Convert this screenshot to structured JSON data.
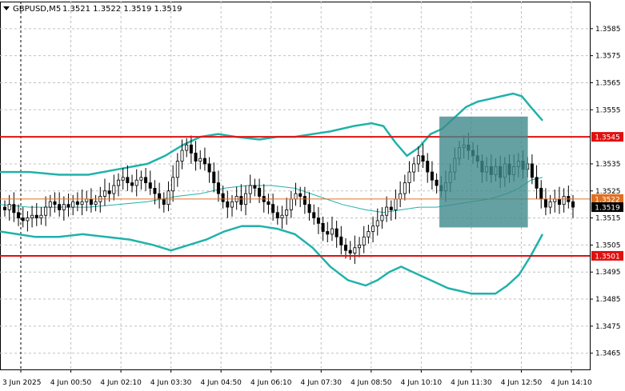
{
  "header": {
    "symbol": "GBPUSD,M5",
    "ohlc": "1.3521 1.3522 1.3519 1.3519"
  },
  "colors": {
    "band": "#20b2aa",
    "level_line": "#e01010",
    "bid_line": "#e07020",
    "highlight_box": "#3f8a8c",
    "candle": "#000000",
    "grid": "#c0c0c0"
  },
  "chart_data": {
    "type": "candlestick",
    "ylim": [
      1.3459,
      1.3595
    ],
    "y_ticks": [
      "1.3585",
      "1.3575",
      "1.3565",
      "1.3555",
      "1.3535",
      "1.3525",
      "1.3515",
      "1.3505",
      "1.3495",
      "1.3485",
      "1.3475",
      "1.3465"
    ],
    "x_ticks": [
      "3 Jun 2025",
      "4 Jun 00:50",
      "4 Jun 02:10",
      "4 Jun 03:30",
      "4 Jun 04:50",
      "4 Jun 06:10",
      "4 Jun 07:30",
      "4 Jun 08:50",
      "4 Jun 10:10",
      "4 Jun 11:30",
      "4 Jun 12:50",
      "4 Jun 14:10"
    ],
    "levels": [
      {
        "label": "1.3545",
        "value": 1.3545
      },
      {
        "label": "1.3501",
        "value": 1.3501
      }
    ],
    "price_tags": [
      {
        "label": "1.3522",
        "value": 1.3522
      },
      {
        "label": "1.3519",
        "value": 1.3519
      }
    ],
    "highlight": {
      "x_from": 0.745,
      "x_to": 0.895,
      "y_from": 1.35525,
      "y_to": 1.35115
    },
    "closes": [
      1.3518,
      1.352,
      1.3517,
      1.3515,
      1.3514,
      1.3515,
      1.3516,
      1.3515,
      1.3516,
      1.3519,
      1.3521,
      1.352,
      1.3518,
      1.352,
      1.3519,
      1.3521,
      1.352,
      1.3521,
      1.3522,
      1.352,
      1.3521,
      1.3523,
      1.3525,
      1.3524,
      1.3527,
      1.3529,
      1.353,
      1.3528,
      1.3527,
      1.3529,
      1.353,
      1.3528,
      1.3526,
      1.3524,
      1.3522,
      1.352,
      1.3525,
      1.353,
      1.3536,
      1.354,
      1.3542,
      1.3539,
      1.3536,
      1.3537,
      1.3535,
      1.3532,
      1.3528,
      1.3524,
      1.3521,
      1.3519,
      1.3521,
      1.3523,
      1.352,
      1.3524,
      1.3527,
      1.3526,
      1.3523,
      1.3521,
      1.352,
      1.3517,
      1.3515,
      1.3516,
      1.3518,
      1.3522,
      1.3524,
      1.3523,
      1.352,
      1.3517,
      1.3515,
      1.3513,
      1.351,
      1.3509,
      1.3511,
      1.3508,
      1.3505,
      1.3503,
      1.3502,
      1.3504,
      1.3505,
      1.3508,
      1.351,
      1.3512,
      1.3514,
      1.3516,
      1.3519,
      1.3518,
      1.3522,
      1.3524,
      1.3528,
      1.3532,
      1.3535,
      1.3538,
      1.3536,
      1.3532,
      1.3529,
      1.3527,
      1.3525,
      1.3528,
      1.3532,
      1.3537,
      1.3541,
      1.3542,
      1.354,
      1.3538,
      1.3536,
      1.3532,
      1.3534,
      1.3531,
      1.3534,
      1.353,
      1.3535,
      1.3531,
      1.3534,
      1.3536,
      1.3533,
      1.3535,
      1.353,
      1.3526,
      1.3522,
      1.3519,
      1.3521,
      1.3522,
      1.352,
      1.3523,
      1.3521,
      1.3519
    ],
    "upper_band": [
      [
        0.0,
        1.3532
      ],
      [
        0.05,
        1.3532
      ],
      [
        0.1,
        1.3531
      ],
      [
        0.15,
        1.3531
      ],
      [
        0.2,
        1.3533
      ],
      [
        0.25,
        1.3535
      ],
      [
        0.28,
        1.3538
      ],
      [
        0.31,
        1.3542
      ],
      [
        0.34,
        1.3545
      ],
      [
        0.37,
        1.3546
      ],
      [
        0.4,
        1.3545
      ],
      [
        0.44,
        1.3544
      ],
      [
        0.47,
        1.3545
      ],
      [
        0.5,
        1.3545
      ],
      [
        0.53,
        1.3546
      ],
      [
        0.56,
        1.3547
      ],
      [
        0.6,
        1.3549
      ],
      [
        0.63,
        1.355
      ],
      [
        0.65,
        1.3549
      ],
      [
        0.67,
        1.3543
      ],
      [
        0.69,
        1.3538
      ],
      [
        0.71,
        1.3541
      ],
      [
        0.73,
        1.3546
      ],
      [
        0.75,
        1.3548
      ],
      [
        0.77,
        1.3552
      ],
      [
        0.79,
        1.3556
      ],
      [
        0.81,
        1.3558
      ],
      [
        0.83,
        1.3559
      ],
      [
        0.85,
        1.356
      ],
      [
        0.87,
        1.3561
      ],
      [
        0.885,
        1.356
      ],
      [
        0.9,
        1.3556
      ],
      [
        0.92,
        1.3551
      ]
    ],
    "middle_band": [
      [
        0.0,
        1.352
      ],
      [
        0.05,
        1.3519
      ],
      [
        0.1,
        1.3519
      ],
      [
        0.15,
        1.3519
      ],
      [
        0.2,
        1.352
      ],
      [
        0.25,
        1.3521
      ],
      [
        0.3,
        1.3523
      ],
      [
        0.34,
        1.3524
      ],
      [
        0.38,
        1.3526
      ],
      [
        0.42,
        1.3527
      ],
      [
        0.46,
        1.3527
      ],
      [
        0.5,
        1.3526
      ],
      [
        0.54,
        1.3523
      ],
      [
        0.58,
        1.352
      ],
      [
        0.62,
        1.3518
      ],
      [
        0.65,
        1.3517
      ],
      [
        0.68,
        1.3518
      ],
      [
        0.71,
        1.3519
      ],
      [
        0.74,
        1.3519
      ],
      [
        0.77,
        1.352
      ],
      [
        0.8,
        1.3521
      ],
      [
        0.83,
        1.3522
      ],
      [
        0.86,
        1.3524
      ],
      [
        0.88,
        1.3526
      ],
      [
        0.9,
        1.3529
      ],
      [
        0.92,
        1.353
      ]
    ],
    "lower_band": [
      [
        0.0,
        1.351
      ],
      [
        0.03,
        1.3509
      ],
      [
        0.06,
        1.3508
      ],
      [
        0.1,
        1.3508
      ],
      [
        0.14,
        1.3509
      ],
      [
        0.18,
        1.3508
      ],
      [
        0.22,
        1.3507
      ],
      [
        0.26,
        1.3505
      ],
      [
        0.29,
        1.3503
      ],
      [
        0.32,
        1.3505
      ],
      [
        0.35,
        1.3507
      ],
      [
        0.38,
        1.351
      ],
      [
        0.41,
        1.3512
      ],
      [
        0.44,
        1.3512
      ],
      [
        0.47,
        1.3511
      ],
      [
        0.5,
        1.3509
      ],
      [
        0.53,
        1.3504
      ],
      [
        0.56,
        1.3497
      ],
      [
        0.59,
        1.3492
      ],
      [
        0.62,
        1.349
      ],
      [
        0.64,
        1.3492
      ],
      [
        0.66,
        1.3495
      ],
      [
        0.68,
        1.3497
      ],
      [
        0.7,
        1.3495
      ],
      [
        0.72,
        1.3493
      ],
      [
        0.74,
        1.3491
      ],
      [
        0.76,
        1.3489
      ],
      [
        0.78,
        1.3488
      ],
      [
        0.8,
        1.3487
      ],
      [
        0.82,
        1.3487
      ],
      [
        0.84,
        1.3487
      ],
      [
        0.86,
        1.349
      ],
      [
        0.88,
        1.3494
      ],
      [
        0.9,
        1.3501
      ],
      [
        0.92,
        1.3509
      ]
    ]
  }
}
